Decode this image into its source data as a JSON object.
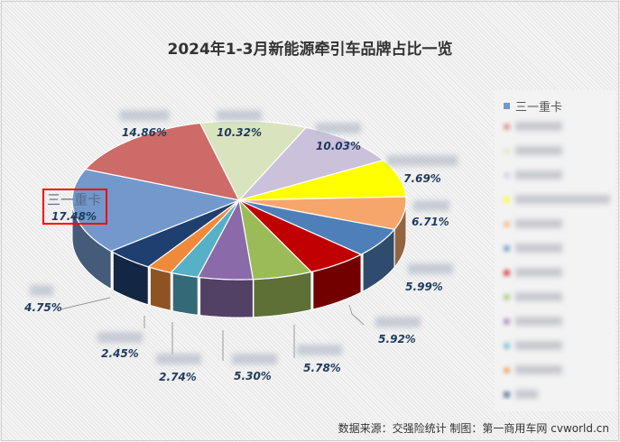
{
  "title": "2024年1-3月新能源牵引车品牌占比一览",
  "source": "数据来源：交强险统计  制图：第一商用车网 cvworld.cn",
  "legend": {
    "first_label": "三一重卡"
  },
  "chart_data": {
    "type": "pie",
    "style": "3d",
    "title": "2024年1-3月新能源牵引车品牌占比一览",
    "labels": [
      "三一重卡",
      "",
      "",
      "",
      "",
      "",
      "",
      "",
      "",
      "",
      "",
      "",
      ""
    ],
    "values": [
      17.48,
      14.86,
      10.32,
      10.03,
      7.69,
      6.71,
      5.99,
      5.92,
      5.78,
      5.3,
      2.74,
      2.45,
      4.75
    ],
    "value_labels": [
      "17.48%",
      "14.86%",
      "10.32%",
      "10.03%",
      "7.69%",
      "6.71%",
      "5.99%",
      "5.92%",
      "5.78%",
      "5.30%",
      "2.74%",
      "2.45%",
      "4.75%"
    ],
    "colors": [
      "#7298cc",
      "#cd6b68",
      "#d9e4bf",
      "#cbc1db",
      "#ffff00",
      "#f6a66a",
      "#4f7fb8",
      "#c00000",
      "#9bbb59",
      "#8a6aa8",
      "#56b0c6",
      "#ee8a3a",
      "#1f3f70"
    ],
    "highlighted": "三一重卡",
    "legend_position": "right"
  }
}
